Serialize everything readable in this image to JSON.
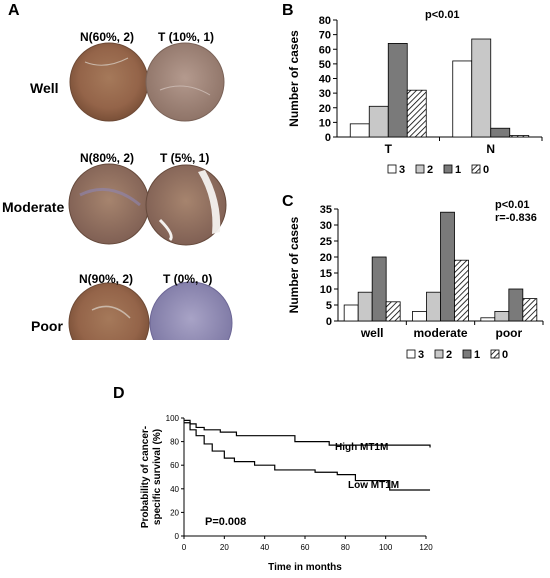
{
  "panels": {
    "a": "A",
    "b": "B",
    "c": "C",
    "d": "D"
  },
  "tissue": {
    "rows": [
      {
        "label": "Well",
        "normal": "N(60%, 2)",
        "tumor": "T (10%, 1)"
      },
      {
        "label": "Moderate",
        "normal": "N(80%, 2)",
        "tumor": "T (5%, 1)"
      },
      {
        "label": "Poor",
        "normal": "N(90%, 2)",
        "tumor": "T (0%, 0)"
      }
    ]
  },
  "chart_data": [
    {
      "panel": "B",
      "type": "bar",
      "categories": [
        "T",
        "N"
      ],
      "series": [
        {
          "name": "3",
          "values": [
            9,
            52
          ]
        },
        {
          "name": "2",
          "values": [
            21,
            67
          ]
        },
        {
          "name": "1",
          "values": [
            64,
            6
          ]
        },
        {
          "name": "0",
          "values": [
            32,
            1
          ]
        }
      ],
      "ylabel": "Number of cases",
      "ylim": [
        0,
        80
      ],
      "yticks": [
        0,
        10,
        20,
        30,
        40,
        50,
        60,
        70,
        80
      ],
      "annotations": [
        "p<0.01"
      ],
      "legend": "bottom",
      "grid": false
    },
    {
      "panel": "C",
      "type": "bar",
      "categories": [
        "well",
        "moderate",
        "poor"
      ],
      "series": [
        {
          "name": "3",
          "values": [
            5,
            3,
            1
          ]
        },
        {
          "name": "2",
          "values": [
            9,
            9,
            3
          ]
        },
        {
          "name": "1",
          "values": [
            20,
            34,
            10
          ]
        },
        {
          "name": "0",
          "values": [
            6,
            19,
            7
          ]
        }
      ],
      "ylabel": "Number of cases",
      "ylim": [
        0,
        35
      ],
      "yticks": [
        0,
        5,
        10,
        15,
        20,
        25,
        30,
        35
      ],
      "annotations": [
        "p<0.01",
        "r=-0.836"
      ],
      "legend": "bottom",
      "grid": false
    },
    {
      "panel": "D",
      "type": "line",
      "xlabel": "Time in months",
      "ylabel": "Probability of cancer-specific survival (%)",
      "ylabel_lines": [
        "Probability of cancer-",
        "specific survival (%)"
      ],
      "xlim": [
        0,
        120
      ],
      "ylim": [
        0,
        100
      ],
      "xticks": [
        0,
        20,
        40,
        60,
        80,
        100,
        120
      ],
      "yticks": [
        0,
        20,
        40,
        60,
        80,
        100
      ],
      "annotations": [
        "P=0.008"
      ],
      "grid": false,
      "series": [
        {
          "name": "High MT1M",
          "x": [
            0,
            3,
            6,
            10,
            18,
            26,
            55,
            72,
            122
          ],
          "y": [
            98,
            95,
            92,
            90,
            88,
            85,
            80,
            77,
            75
          ]
        },
        {
          "name": "Low MT1M",
          "x": [
            0,
            3,
            6,
            10,
            14,
            20,
            25,
            35,
            45,
            65,
            76,
            85,
            102,
            122
          ],
          "y": [
            96,
            90,
            85,
            78,
            72,
            66,
            63,
            60,
            56,
            54,
            52,
            47,
            39,
            39
          ]
        }
      ]
    }
  ]
}
